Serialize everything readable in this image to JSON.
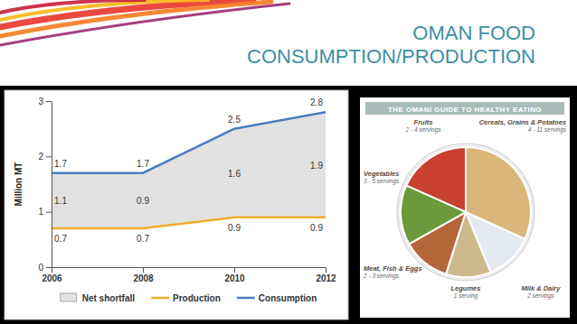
{
  "title": "OMAN FOOD CONSUMPTION/PRODUCTION",
  "chart_data": {
    "type": "line",
    "x": [
      2006,
      2008,
      2010,
      2012
    ],
    "xlim": [
      2006,
      2012
    ],
    "xticks": [
      2006,
      2008,
      2010,
      2012
    ],
    "ylim": [
      0,
      3
    ],
    "yticks": [
      0,
      1,
      2,
      3
    ],
    "y_label": "Million MT",
    "grid": false,
    "legend": "bottom",
    "data_labels": true,
    "series": [
      {
        "name": "Net shortfall",
        "type": "area",
        "color": "#e2e2e2",
        "values": [
          1.1,
          0.9,
          1.6,
          1.9
        ]
      },
      {
        "name": "Production",
        "type": "line",
        "color": "#f0ac2c",
        "values": [
          0.7,
          0.7,
          0.9,
          0.9
        ]
      },
      {
        "name": "Consumption",
        "type": "line",
        "color": "#4a7ebb",
        "values": [
          1.7,
          1.7,
          2.5,
          2.8
        ]
      }
    ]
  },
  "guide": {
    "title": "THE OMANI GUIDE TO HEALTHY EATING",
    "sections": [
      {
        "label": "Fruits",
        "servings": "2 - 4 servings"
      },
      {
        "label": "Cereals, Grains & Potatoes",
        "servings": "4 - 11 servings"
      },
      {
        "label": "Milk & Dairy",
        "servings": "2 servings"
      },
      {
        "label": "Legumes",
        "servings": "1 serving"
      },
      {
        "label": "Meat, Fish & Eggs",
        "servings": "2 - 3 servings"
      },
      {
        "label": "Vegetables",
        "servings": "3 - 5 servings"
      }
    ]
  }
}
